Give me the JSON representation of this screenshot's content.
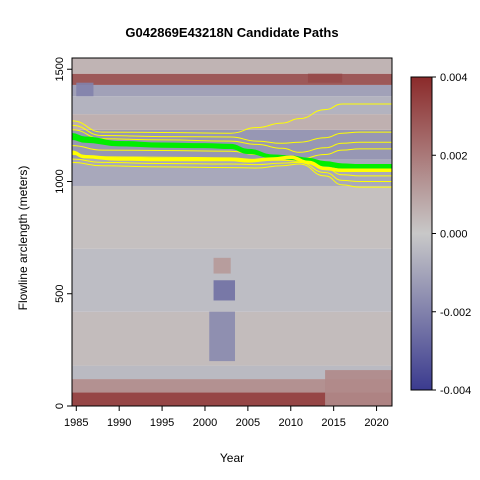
{
  "chart_data": {
    "type": "heatmap",
    "title": "G042869E43218N Candidate Paths",
    "xlabel": "Year",
    "ylabel": "Flowline arclength (meters)",
    "xlim": [
      1984.5,
      2021.8
    ],
    "ylim": [
      0,
      1550
    ],
    "x_ticks": [
      1985,
      1990,
      1995,
      2000,
      2005,
      2010,
      2015,
      2020
    ],
    "y_ticks": [
      0,
      500,
      1000,
      1500
    ],
    "colorbar": {
      "range": [
        -0.004,
        0.004
      ],
      "ticks": [
        -0.004,
        -0.002,
        0.0,
        0.002,
        0.004
      ],
      "tick_labels": [
        "-0.004",
        "-0.002",
        "0.000",
        "0.002",
        "0.004"
      ],
      "colors": [
        "#3b3b8f",
        "#c8c8c8",
        "#8b2a2a"
      ]
    },
    "heatmap_bands": [
      {
        "y": [
          0,
          60
        ],
        "value": 0.0033
      },
      {
        "y": [
          60,
          120
        ],
        "value": 0.0014
      },
      {
        "y": [
          120,
          180
        ],
        "value": -0.0004
      },
      {
        "y": [
          180,
          420
        ],
        "value": 0.0003
      },
      {
        "y": [
          420,
          700
        ],
        "value": -0.0003
      },
      {
        "y": [
          700,
          980
        ],
        "value": 0.0002
      },
      {
        "y": [
          980,
          1100
        ],
        "value": -0.0009
      },
      {
        "y": [
          1100,
          1230
        ],
        "value": -0.0014
      },
      {
        "y": [
          1230,
          1300
        ],
        "value": 0.0006
      },
      {
        "y": [
          1300,
          1380
        ],
        "value": -0.0006
      },
      {
        "y": [
          1380,
          1430
        ],
        "value": -0.0011
      },
      {
        "y": [
          1430,
          1480
        ],
        "value": 0.0028
      },
      {
        "y": [
          1480,
          1550
        ],
        "value": 0.0005
      }
    ],
    "heatmap_patches": [
      {
        "x": [
          2000.5,
          2003.5
        ],
        "y": [
          200,
          420
        ],
        "value": -0.0018
      },
      {
        "x": [
          2001,
          2003.5
        ],
        "y": [
          470,
          560
        ],
        "value": -0.0025
      },
      {
        "x": [
          2001,
          2003
        ],
        "y": [
          590,
          660
        ],
        "value": 0.0012
      },
      {
        "x": [
          2012,
          2016
        ],
        "y": [
          1440,
          1480
        ],
        "value": 0.0032
      },
      {
        "x": [
          2014,
          2021.8
        ],
        "y": [
          0,
          160
        ],
        "value": 0.0016
      },
      {
        "x": [
          1985,
          1987
        ],
        "y": [
          1380,
          1440
        ],
        "value": -0.002
      }
    ],
    "paths_main": {
      "color": "#00ee00",
      "x": [
        1984.5,
        1986,
        1990,
        1995,
        2000,
        2003,
        2005,
        2008,
        2010,
        2012,
        2014,
        2016,
        2018,
        2021.8
      ],
      "series": [
        {
          "y": [
            1210,
            1195,
            1175,
            1168,
            1165,
            1162,
            1140,
            1115,
            1110,
            1100,
            1085,
            1075,
            1072,
            1072
          ]
        },
        {
          "y": [
            1200,
            1185,
            1168,
            1160,
            1158,
            1155,
            1135,
            1112,
            1105,
            1095,
            1078,
            1068,
            1066,
            1065
          ]
        },
        {
          "y": [
            1190,
            1178,
            1162,
            1156,
            1154,
            1150,
            1128,
            1108,
            1102,
            1090,
            1072,
            1062,
            1060,
            1060
          ]
        }
      ]
    },
    "path_best": {
      "color": "#ffff00",
      "x": [
        1984.5,
        1986,
        1990,
        1995,
        2000,
        2003,
        2005,
        2008,
        2010,
        2012,
        2014,
        2016,
        2018,
        2021.8
      ],
      "y": [
        1130,
        1110,
        1100,
        1098,
        1098,
        1098,
        1092,
        1100,
        1108,
        1085,
        1058,
        1050,
        1050,
        1050
      ]
    },
    "paths_yellow": {
      "color": "#ffff00",
      "x": [
        1984.5,
        1988,
        1995,
        2003,
        2006,
        2009,
        2011,
        2014,
        2016,
        2018,
        2021.8
      ],
      "series": [
        {
          "y": [
            1270,
            1220,
            1218,
            1215,
            1240,
            1260,
            1280,
            1320,
            1345,
            1345,
            1345
          ]
        },
        {
          "y": [
            1250,
            1205,
            1200,
            1198,
            1180,
            1170,
            1175,
            1195,
            1215,
            1220,
            1220
          ]
        },
        {
          "y": [
            1230,
            1190,
            1185,
            1180,
            1165,
            1148,
            1130,
            1150,
            1170,
            1175,
            1175
          ]
        },
        {
          "y": [
            1160,
            1140,
            1138,
            1135,
            1120,
            1112,
            1100,
            1120,
            1140,
            1145,
            1145
          ]
        },
        {
          "y": [
            1120,
            1110,
            1108,
            1105,
            1098,
            1095,
            1090,
            1060,
            1030,
            1025,
            1025
          ]
        },
        {
          "y": [
            1100,
            1085,
            1080,
            1078,
            1075,
            1082,
            1085,
            1040,
            1005,
            1000,
            1000
          ]
        },
        {
          "y": [
            1085,
            1070,
            1065,
            1062,
            1060,
            1070,
            1078,
            1025,
            985,
            975,
            975
          ]
        }
      ]
    }
  }
}
